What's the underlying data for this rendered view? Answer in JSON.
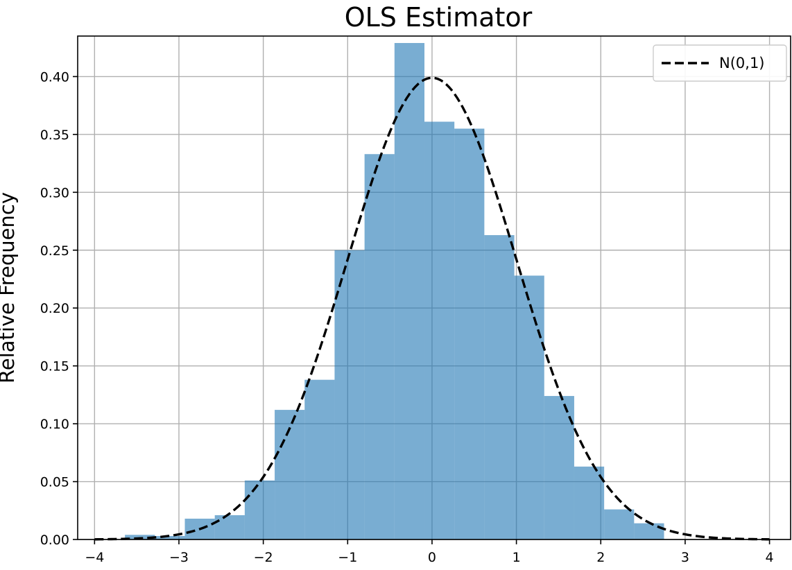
{
  "chart_data": {
    "type": "bar",
    "title": "OLS Estimator",
    "xlabel": "",
    "ylabel": "Relative Frequency",
    "xlim": [
      -4.2,
      4.25
    ],
    "ylim": [
      0,
      0.435
    ],
    "xticks": [
      -4,
      -3,
      -2,
      -1,
      0,
      1,
      2,
      3,
      4
    ],
    "xtick_labels": [
      "−4",
      "−3",
      "−2",
      "−1",
      "0",
      "1",
      "2",
      "3",
      "4"
    ],
    "yticks": [
      0.0,
      0.05,
      0.1,
      0.15,
      0.2,
      0.25,
      0.3,
      0.35,
      0.4
    ],
    "ytick_labels": [
      "0.00",
      "0.05",
      "0.10",
      "0.15",
      "0.20",
      "0.25",
      "0.30",
      "0.35",
      "0.40"
    ],
    "grid": true,
    "legend_position": "top-right",
    "histogram": {
      "bin_edges": [
        -3.64,
        -3.285,
        -2.93,
        -2.575,
        -2.22,
        -1.865,
        -1.51,
        -1.155,
        -0.8,
        -0.445,
        -0.09,
        0.265,
        0.62,
        0.975,
        1.33,
        1.685,
        2.04,
        2.395,
        2.75
      ],
      "values": [
        0.004,
        0.003,
        0.018,
        0.021,
        0.051,
        0.112,
        0.138,
        0.25,
        0.333,
        0.429,
        0.361,
        0.355,
        0.263,
        0.228,
        0.124,
        0.063,
        0.026,
        0.014
      ],
      "color": "#1f77b4"
    },
    "series": [
      {
        "name": "N(0,1)",
        "type": "line",
        "function": "standard_normal_pdf",
        "x_range": [
          -4,
          4
        ],
        "style": "dashed",
        "color": "#000000"
      }
    ]
  }
}
